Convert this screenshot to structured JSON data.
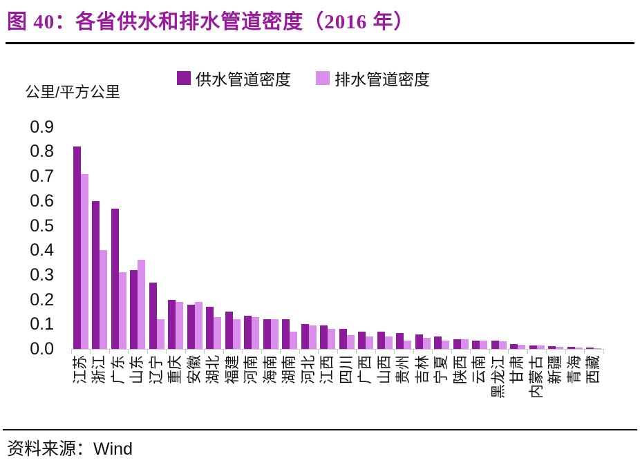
{
  "header": {
    "title": "图 40：各省供水和排水管道密度（2016 年）"
  },
  "footer": {
    "source_label": "资料来源：",
    "source_value": "Wind"
  },
  "chart_data": {
    "type": "bar",
    "title": "各省供水和排水管道密度（2016年）",
    "unit_label": "公里/平方公里",
    "ylabel": "公里/平方公里",
    "xlabel": "",
    "ylim": [
      0.0,
      0.9
    ],
    "ytick_step": 0.1,
    "yticks": [
      "0.0",
      "0.1",
      "0.2",
      "0.3",
      "0.4",
      "0.5",
      "0.6",
      "0.7",
      "0.8",
      "0.9"
    ],
    "grid": false,
    "legend_position": "top-center",
    "xlabel_rotation": -90,
    "categories": [
      "江苏",
      "浙江",
      "广东",
      "山东",
      "辽宁",
      "重庆",
      "安徽",
      "湖北",
      "福建",
      "河南",
      "海南",
      "湖南",
      "河北",
      "江西",
      "四川",
      "广西",
      "山西",
      "贵州",
      "吉林",
      "宁夏",
      "陕西",
      "云南",
      "黑龙江",
      "甘肃",
      "内蒙古",
      "新疆",
      "青海",
      "西藏"
    ],
    "series": [
      {
        "name": "供水管道密度",
        "color": "#8C1C9C",
        "values": [
          0.82,
          0.6,
          0.57,
          0.32,
          0.27,
          0.2,
          0.18,
          0.17,
          0.15,
          0.135,
          0.12,
          0.12,
          0.1,
          0.095,
          0.08,
          0.07,
          0.07,
          0.065,
          0.06,
          0.05,
          0.04,
          0.035,
          0.035,
          0.02,
          0.015,
          0.01,
          0.008,
          0.005
        ]
      },
      {
        "name": "排水管道密度",
        "color": "#DA8FEC",
        "values": [
          0.71,
          0.4,
          0.31,
          0.36,
          0.12,
          0.19,
          0.19,
          0.13,
          0.12,
          0.13,
          0.12,
          0.07,
          0.095,
          0.08,
          0.055,
          0.05,
          0.05,
          0.035,
          0.045,
          0.035,
          0.04,
          0.035,
          0.03,
          0.018,
          0.015,
          0.008,
          0.005,
          0.003
        ]
      }
    ]
  },
  "colors": {
    "title_accent": "#99199C",
    "bar_dark": "#8C1C9C",
    "bar_light": "#DA8FEC",
    "axis_gray": "#c8c8c8",
    "rule_black": "#000000"
  }
}
